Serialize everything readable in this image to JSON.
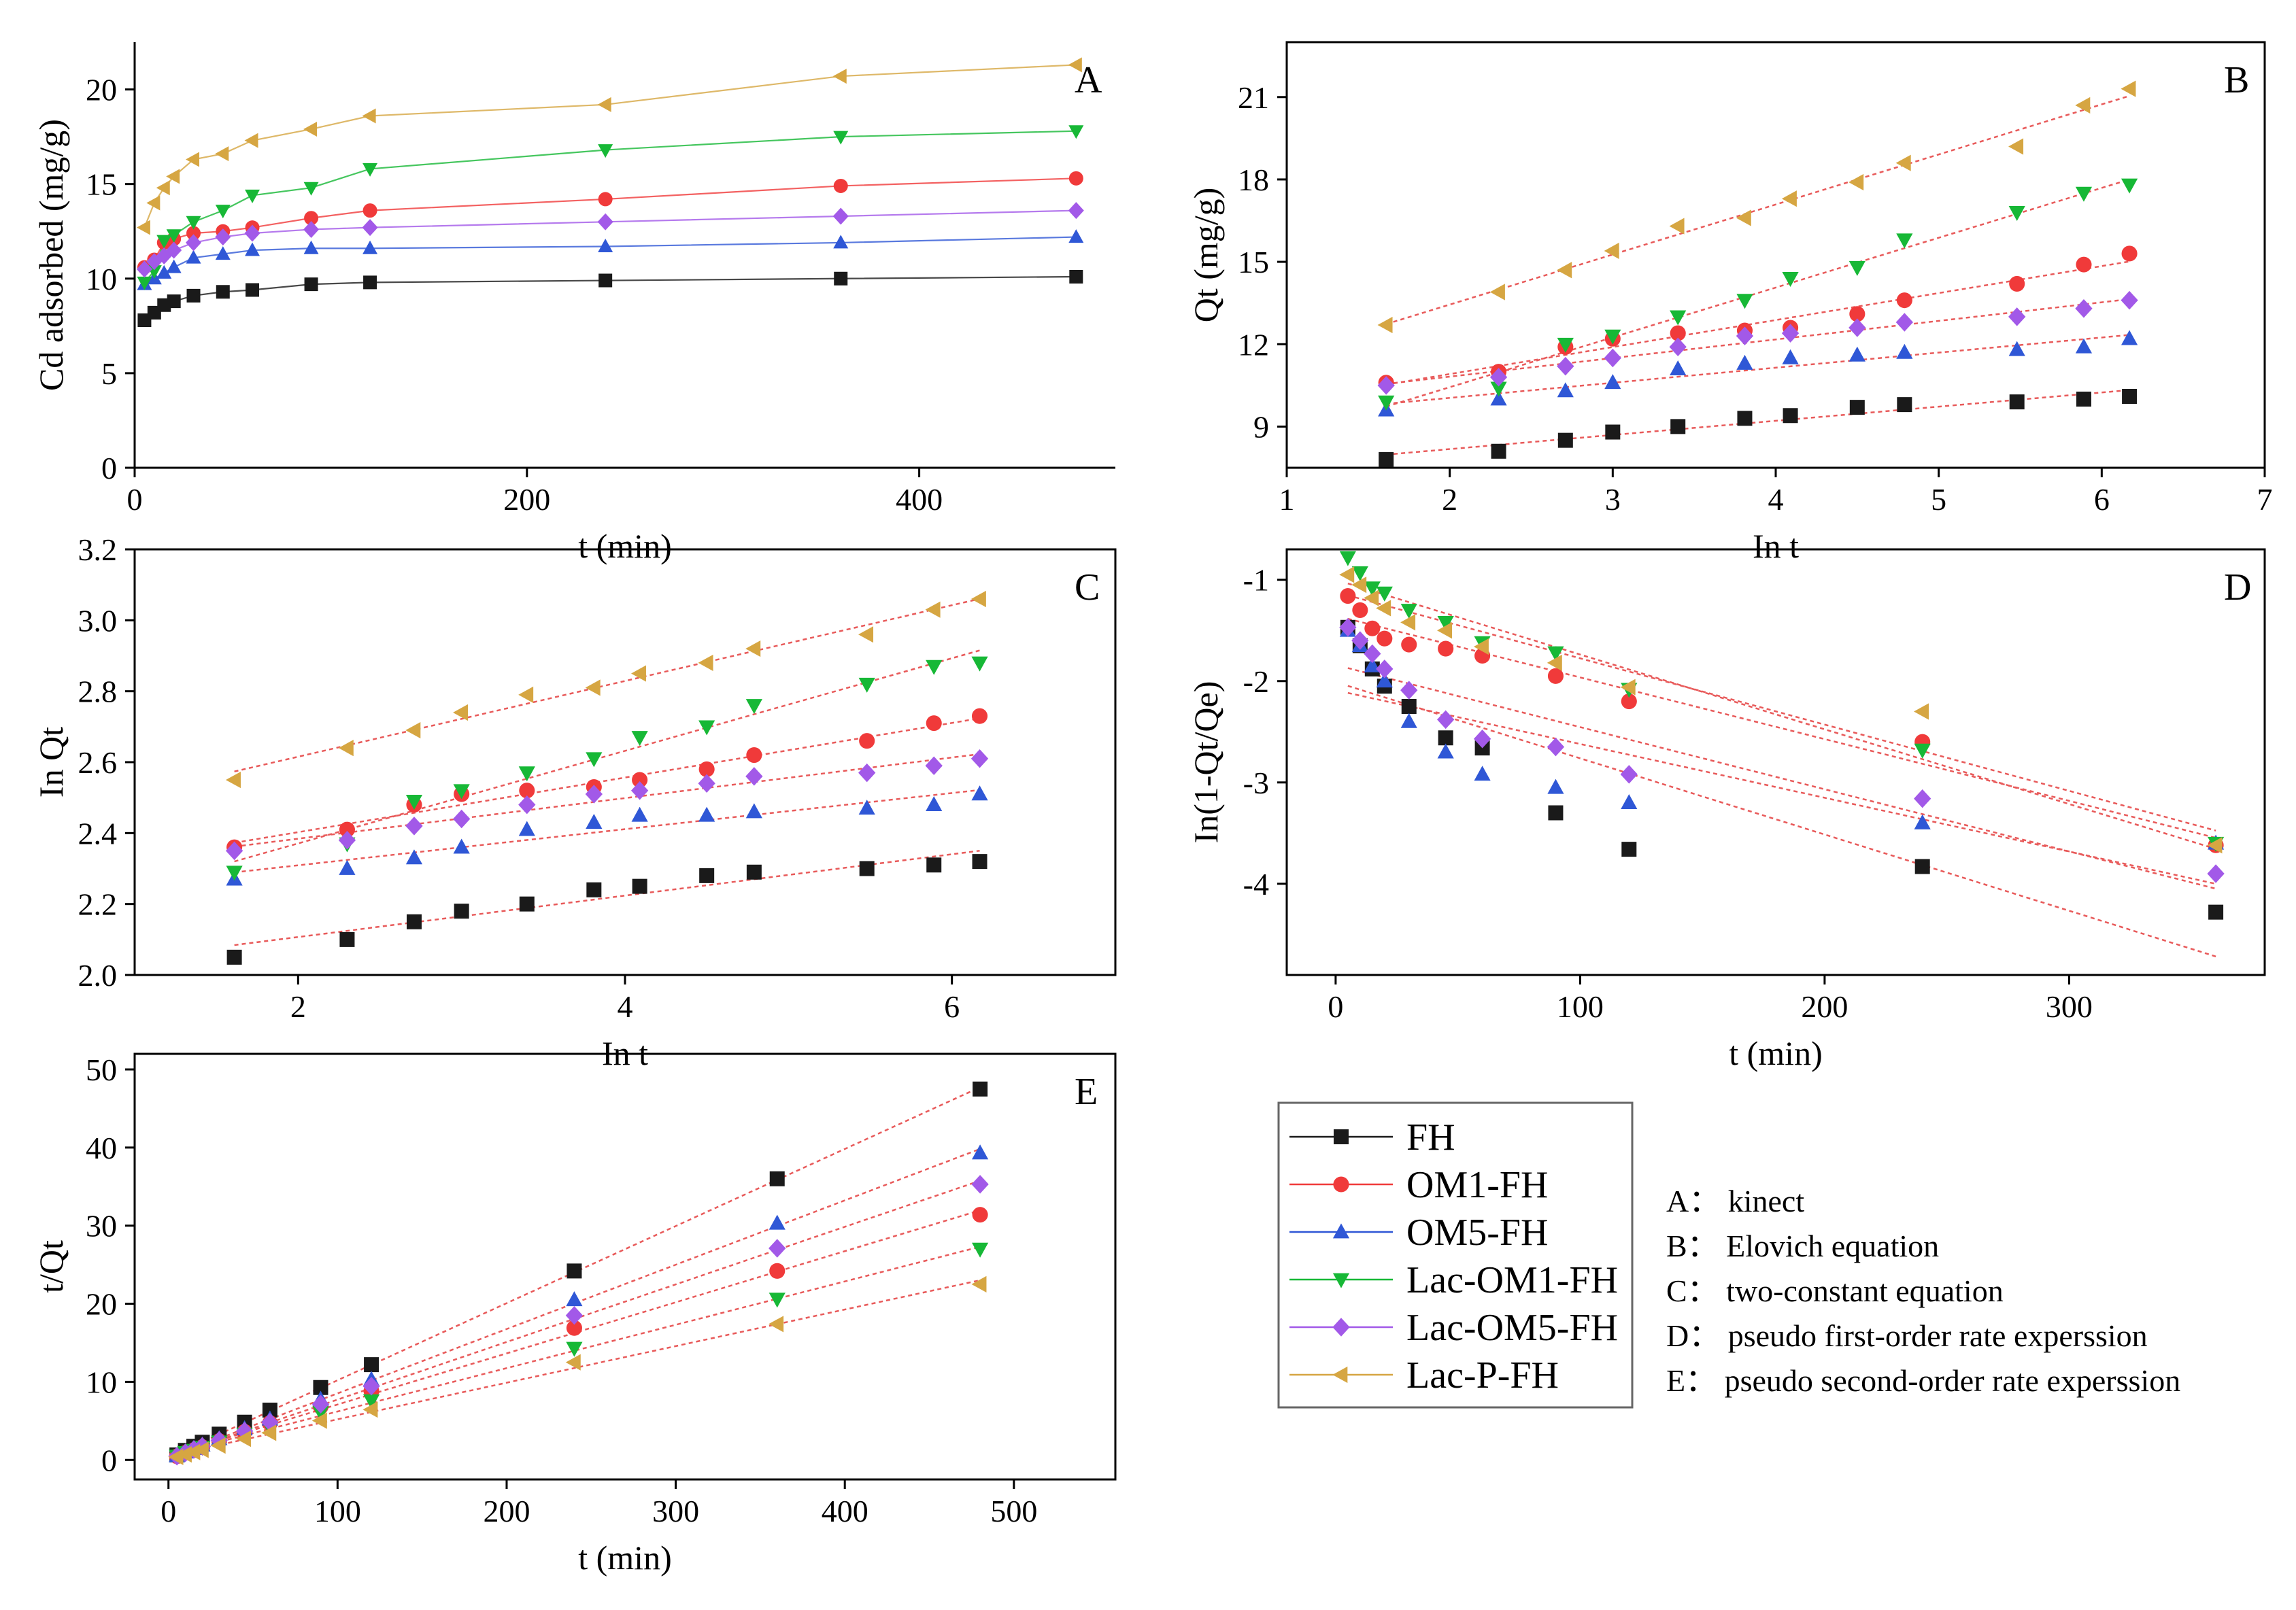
{
  "series_styles": [
    {
      "name": "FH",
      "color": "#1a1a1a",
      "marker": "square"
    },
    {
      "name": "OM1-FH",
      "color": "#f03a3a",
      "marker": "circle"
    },
    {
      "name": "OM5-FH",
      "color": "#2f57d6",
      "marker": "triangle-up"
    },
    {
      "name": "Lac-OM1-FH",
      "color": "#17b836",
      "marker": "triangle-down"
    },
    {
      "name": "Lac-OM5-FH",
      "color": "#a259e8",
      "marker": "diamond"
    },
    {
      "name": "Lac-P-FH",
      "color": "#d6a642",
      "marker": "triangle-left"
    }
  ],
  "fit_line_color": "#e85a5a",
  "legend": {
    "entries": [
      "FH",
      "OM1-FH",
      "OM5-FH",
      "Lac-OM1-FH",
      "Lac-OM5-FH",
      "Lac-P-FH"
    ]
  },
  "caption": {
    "lines": [
      "A： kinect",
      "B： Elovich equation",
      "C： two-constant equation",
      "D： pseudo first-order rate experssion",
      "E： pseudo second-order rate experssion"
    ]
  },
  "chart_data": [
    {
      "id": "A",
      "type": "line",
      "panel_label": "A",
      "title": "",
      "xlabel": "t (min)",
      "ylabel": "Cd adsorbed (mg/g)",
      "xlim": [
        0,
        500
      ],
      "ylim": [
        0,
        22.5
      ],
      "xticks": [
        0,
        200,
        400
      ],
      "yticks": [
        0,
        5,
        10,
        15,
        20
      ],
      "connect": true,
      "x": [
        5,
        10,
        15,
        20,
        30,
        45,
        60,
        90,
        120,
        240,
        360,
        480
      ],
      "series": [
        {
          "name": "FH",
          "values": [
            7.8,
            8.2,
            8.6,
            8.8,
            9.1,
            9.3,
            9.4,
            9.7,
            9.8,
            9.9,
            10.0,
            10.1
          ]
        },
        {
          "name": "OM1-FH",
          "values": [
            10.6,
            11.0,
            11.9,
            12.1,
            12.4,
            12.5,
            12.7,
            13.2,
            13.6,
            14.2,
            14.9,
            15.3
          ]
        },
        {
          "name": "OM5-FH",
          "values": [
            9.7,
            10.0,
            10.3,
            10.6,
            11.1,
            11.3,
            11.5,
            11.6,
            11.6,
            11.7,
            11.9,
            12.2
          ]
        },
        {
          "name": "Lac-OM1-FH",
          "values": [
            9.8,
            10.4,
            12.0,
            12.3,
            13.0,
            13.6,
            14.4,
            14.8,
            15.8,
            16.8,
            17.5,
            17.8
          ]
        },
        {
          "name": "Lac-OM5-FH",
          "values": [
            10.5,
            10.9,
            11.2,
            11.5,
            11.9,
            12.2,
            12.4,
            12.6,
            12.7,
            13.0,
            13.3,
            13.6
          ]
        },
        {
          "name": "Lac-P-FH",
          "values": [
            12.7,
            14.0,
            14.8,
            15.4,
            16.3,
            16.6,
            17.3,
            17.9,
            18.6,
            19.2,
            20.7,
            21.3
          ]
        }
      ]
    },
    {
      "id": "B",
      "type": "scatter",
      "panel_label": "B",
      "title": "",
      "xlabel": "In t",
      "ylabel": "Qt (mg/g)",
      "xlim": [
        1,
        7
      ],
      "ylim": [
        7.5,
        23
      ],
      "xticks": [
        1,
        2,
        3,
        4,
        5,
        6,
        7
      ],
      "yticks": [
        9,
        12,
        15,
        18,
        21
      ],
      "fit_lines": true,
      "x": [
        1.61,
        2.3,
        2.71,
        3.0,
        3.4,
        3.81,
        4.09,
        4.5,
        4.79,
        5.48,
        5.89,
        6.17
      ],
      "series": [
        {
          "name": "FH",
          "values": [
            7.8,
            8.1,
            8.5,
            8.8,
            9.0,
            9.3,
            9.4,
            9.7,
            9.8,
            9.9,
            10.0,
            10.1
          ]
        },
        {
          "name": "OM1-FH",
          "values": [
            10.6,
            11.0,
            11.9,
            12.2,
            12.4,
            12.5,
            12.6,
            13.1,
            13.6,
            14.2,
            14.9,
            15.3
          ]
        },
        {
          "name": "OM5-FH",
          "values": [
            9.6,
            10.0,
            10.3,
            10.6,
            11.1,
            11.3,
            11.5,
            11.6,
            11.7,
            11.8,
            11.9,
            12.2
          ]
        },
        {
          "name": "Lac-OM1-FH",
          "values": [
            9.9,
            10.4,
            12.0,
            12.3,
            13.0,
            13.6,
            14.4,
            14.8,
            15.8,
            16.8,
            17.5,
            17.8
          ]
        },
        {
          "name": "Lac-OM5-FH",
          "values": [
            10.5,
            10.8,
            11.2,
            11.5,
            11.9,
            12.3,
            12.4,
            12.6,
            12.8,
            13.0,
            13.3,
            13.6
          ]
        },
        {
          "name": "Lac-P-FH",
          "values": [
            12.7,
            13.9,
            14.7,
            15.4,
            16.3,
            16.6,
            17.3,
            17.9,
            18.6,
            19.2,
            20.7,
            21.3
          ]
        }
      ]
    },
    {
      "id": "C",
      "type": "scatter",
      "panel_label": "C",
      "title": "",
      "xlabel": "In t",
      "ylabel": "In Qt",
      "xlim": [
        1,
        7
      ],
      "ylim": [
        2.0,
        3.2
      ],
      "xticks": [
        2,
        4,
        6
      ],
      "yticks": [
        2.0,
        2.2,
        2.4,
        2.6,
        2.8,
        3.0,
        3.2
      ],
      "fit_lines": true,
      "x": [
        1.61,
        2.3,
        2.71,
        3.0,
        3.4,
        3.81,
        4.09,
        4.5,
        4.79,
        5.48,
        5.89,
        6.17
      ],
      "series": [
        {
          "name": "FH",
          "values": [
            2.05,
            2.1,
            2.15,
            2.18,
            2.2,
            2.24,
            2.25,
            2.28,
            2.29,
            2.3,
            2.31,
            2.32
          ]
        },
        {
          "name": "OM1-FH",
          "values": [
            2.36,
            2.41,
            2.48,
            2.51,
            2.52,
            2.53,
            2.55,
            2.58,
            2.62,
            2.66,
            2.71,
            2.73
          ]
        },
        {
          "name": "OM5-FH",
          "values": [
            2.27,
            2.3,
            2.33,
            2.36,
            2.41,
            2.43,
            2.45,
            2.45,
            2.46,
            2.47,
            2.48,
            2.51
          ]
        },
        {
          "name": "Lac-OM1-FH",
          "values": [
            2.29,
            2.37,
            2.49,
            2.52,
            2.57,
            2.61,
            2.67,
            2.7,
            2.76,
            2.82,
            2.87,
            2.88
          ]
        },
        {
          "name": "Lac-OM5-FH",
          "values": [
            2.35,
            2.38,
            2.42,
            2.44,
            2.48,
            2.51,
            2.52,
            2.54,
            2.56,
            2.57,
            2.59,
            2.61
          ]
        },
        {
          "name": "Lac-P-FH",
          "values": [
            2.55,
            2.64,
            2.69,
            2.74,
            2.79,
            2.81,
            2.85,
            2.88,
            2.92,
            2.96,
            3.03,
            3.06
          ]
        }
      ]
    },
    {
      "id": "D",
      "type": "scatter",
      "panel_label": "D",
      "title": "",
      "xlabel": "t (min)",
      "ylabel": "In(1-Qt/Qe)",
      "xlim": [
        -20,
        380
      ],
      "ylim": [
        -4.9,
        -0.7
      ],
      "xticks": [
        0,
        100,
        200,
        300
      ],
      "yticks": [
        -4,
        -3,
        -2,
        -1
      ],
      "fit_lines": true,
      "x": [
        5,
        10,
        15,
        20,
        30,
        45,
        60,
        90,
        120,
        240,
        360
      ],
      "series": [
        {
          "name": "FH",
          "values": [
            -1.47,
            -1.65,
            -1.88,
            -2.05,
            -2.25,
            -2.56,
            -2.66,
            -3.3,
            -3.66,
            -3.83,
            -4.28
          ]
        },
        {
          "name": "OM1-FH",
          "values": [
            -1.16,
            -1.3,
            -1.48,
            -1.58,
            -1.64,
            -1.68,
            -1.75,
            -1.95,
            -2.2,
            -2.6,
            -3.62
          ]
        },
        {
          "name": "OM5-FH",
          "values": [
            -1.5,
            -1.65,
            -1.85,
            -2.0,
            -2.4,
            -2.7,
            -2.92,
            -3.05,
            -3.2,
            -3.4,
            -3.6
          ]
        },
        {
          "name": "Lac-OM1-FH",
          "values": [
            -0.78,
            -0.93,
            -1.08,
            -1.13,
            -1.3,
            -1.42,
            -1.62,
            -1.72,
            -2.08,
            -2.68,
            -3.6
          ]
        },
        {
          "name": "Lac-OM5-FH",
          "values": [
            -1.47,
            -1.6,
            -1.73,
            -1.88,
            -2.09,
            -2.38,
            -2.57,
            -2.65,
            -2.92,
            -3.16,
            -3.9
          ]
        },
        {
          "name": "Lac-P-FH",
          "values": [
            -0.95,
            -1.05,
            -1.18,
            -1.28,
            -1.42,
            -1.5,
            -1.66,
            -1.82,
            -2.06,
            -2.3,
            -3.62
          ]
        }
      ]
    },
    {
      "id": "E",
      "type": "scatter",
      "panel_label": "E",
      "title": "",
      "xlabel": "t (min)",
      "ylabel": "t/Qt",
      "xlim": [
        -20,
        560
      ],
      "ylim": [
        -2.5,
        52
      ],
      "xticks": [
        0,
        100,
        200,
        300,
        400,
        500
      ],
      "yticks": [
        0,
        10,
        20,
        30,
        40,
        50
      ],
      "fit_lines": true,
      "x": [
        5,
        10,
        15,
        20,
        30,
        45,
        60,
        90,
        120,
        240,
        360,
        480
      ],
      "series": [
        {
          "name": "FH",
          "values": [
            0.64,
            1.22,
            1.74,
            2.27,
            3.3,
            4.84,
            6.38,
            9.28,
            12.2,
            24.2,
            36.0,
            47.5
          ]
        },
        {
          "name": "OM1-FH",
          "values": [
            0.47,
            0.91,
            1.26,
            1.65,
            2.42,
            3.6,
            4.72,
            6.82,
            8.82,
            16.9,
            24.2,
            31.4
          ]
        },
        {
          "name": "OM5-FH",
          "values": [
            0.52,
            1.0,
            1.46,
            1.89,
            2.7,
            3.98,
            5.22,
            7.76,
            10.3,
            20.5,
            30.3,
            39.3
          ]
        },
        {
          "name": "Lac-OM1-FH",
          "values": [
            0.51,
            0.96,
            1.25,
            1.63,
            2.31,
            3.31,
            4.17,
            6.08,
            7.59,
            14.3,
            20.6,
            27.0
          ]
        },
        {
          "name": "Lac-OM5-FH",
          "values": [
            0.48,
            0.92,
            1.34,
            1.74,
            2.52,
            3.69,
            4.84,
            7.14,
            9.45,
            18.5,
            27.1,
            35.3
          ]
        },
        {
          "name": "Lac-P-FH",
          "values": [
            0.39,
            0.71,
            1.01,
            1.3,
            1.84,
            2.71,
            3.47,
            5.03,
            6.45,
            12.5,
            17.4,
            22.5
          ]
        }
      ]
    }
  ]
}
